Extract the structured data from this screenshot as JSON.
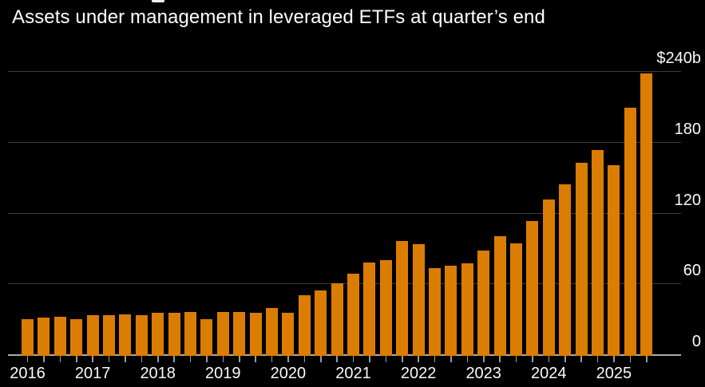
{
  "header": {
    "subtitle": "Assets under management in leveraged ETFs at quarter’s end"
  },
  "chart_data": {
    "type": "bar",
    "title": "Assets under management in leveraged ETFs at quarter’s end",
    "unit": "$b",
    "categories": [
      "2016 Q1",
      "2016 Q2",
      "2016 Q3",
      "2016 Q4",
      "2017 Q1",
      "2017 Q2",
      "2017 Q3",
      "2017 Q4",
      "2018 Q1",
      "2018 Q2",
      "2018 Q3",
      "2018 Q4",
      "2019 Q1",
      "2019 Q2",
      "2019 Q3",
      "2019 Q4",
      "2020 Q1",
      "2020 Q2",
      "2020 Q3",
      "2020 Q4",
      "2021 Q1",
      "2021 Q2",
      "2021 Q3",
      "2021 Q4",
      "2022 Q1",
      "2022 Q2",
      "2022 Q3",
      "2022 Q4",
      "2023 Q1",
      "2023 Q2",
      "2023 Q3",
      "2023 Q4",
      "2024 Q1",
      "2024 Q2",
      "2024 Q3",
      "2024 Q4",
      "2025 Q1",
      "2025 Q2",
      "2025 Q3"
    ],
    "values": [
      30,
      31,
      32,
      30,
      33,
      33,
      34,
      33,
      35,
      35,
      36,
      30,
      36,
      36,
      35,
      39,
      35,
      50,
      54,
      60,
      68,
      78,
      80,
      96,
      93,
      73,
      75,
      77,
      88,
      100,
      94,
      113,
      131,
      144,
      162,
      173,
      160,
      209,
      238
    ],
    "xlabel": "",
    "ylabel": "",
    "ylim": [
      0,
      240
    ],
    "grid": true,
    "legend_position": "none",
    "y_axis": {
      "ticks": [
        {
          "label": "$240b",
          "value": 240
        },
        {
          "label": "180",
          "value": 180
        },
        {
          "label": "120",
          "value": 120
        },
        {
          "label": "60",
          "value": 60
        },
        {
          "label": "0",
          "value": 0
        }
      ]
    },
    "x_axis": {
      "year_labels": [
        "2016",
        "2017",
        "2018",
        "2019",
        "2020",
        "2021",
        "2022",
        "2023",
        "2024",
        "2025"
      ]
    }
  },
  "colors": {
    "background": "#000000",
    "bar": "#DB7D03",
    "gridline": "#3C3C3C",
    "axis_line": "#ACACAC",
    "tick": "#9B9B9B",
    "axis_text": "#FAFAFA",
    "title_text": "#FFFFFF"
  }
}
